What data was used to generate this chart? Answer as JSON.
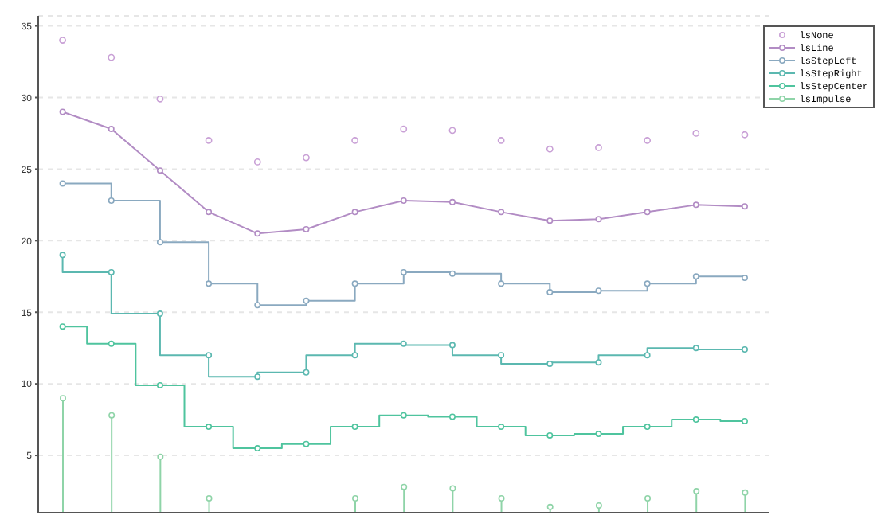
{
  "chart_data": {
    "type": "line",
    "categories": [
      null,
      null,
      null,
      null,
      null,
      null,
      null,
      null,
      null,
      null,
      null,
      null,
      null,
      null,
      null
    ],
    "series": [
      {
        "name": "lsNone",
        "type": "scatter",
        "color": "#c9a0d6",
        "values": [
          34,
          32.8,
          29.9,
          27,
          25.5,
          25.8,
          27,
          27.8,
          27.7,
          27,
          26.4,
          26.5,
          27,
          27.5,
          27.4
        ]
      },
      {
        "name": "lsLine",
        "color": "#b28cc4",
        "values": [
          29,
          27.8,
          24.9,
          22,
          20.5,
          20.8,
          22,
          22.8,
          22.7,
          22,
          21.4,
          21.5,
          22,
          22.5,
          22.4
        ]
      },
      {
        "name": "lsStepLeft",
        "type": "step",
        "color": "#8aa9c0",
        "values": [
          24,
          22.8,
          19.9,
          17,
          15.5,
          15.8,
          17,
          17.8,
          17.7,
          17,
          16.4,
          16.5,
          17,
          17.5,
          17.4
        ]
      },
      {
        "name": "lsStepRight",
        "type": "step",
        "color": "#5bb8b0",
        "values": [
          19,
          17.8,
          14.9,
          12,
          10.5,
          10.8,
          12,
          12.8,
          12.7,
          12,
          11.4,
          11.5,
          12,
          12.5,
          12.4
        ]
      },
      {
        "name": "lsStepCenter",
        "type": "step",
        "color": "#4fc49e",
        "values": [
          14,
          12.8,
          9.9,
          7,
          5.5,
          5.8,
          7,
          7.8,
          7.7,
          7,
          6.4,
          6.5,
          7,
          7.5,
          7.4
        ]
      },
      {
        "name": "lsImpulse",
        "type": "lollipop",
        "color": "#8fd4a8",
        "values": [
          9,
          7.8,
          4.9,
          2,
          null,
          null,
          2,
          2.8,
          2.7,
          2,
          1.4,
          1.5,
          2,
          2.5,
          2.4
        ]
      }
    ],
    "ylim": [
      1,
      35.7
    ],
    "yticks": [
      5,
      10,
      15,
      20,
      25,
      30,
      35
    ],
    "tick_labels": "y",
    "grid": "y",
    "legend": "top right",
    "marker": "circle"
  }
}
